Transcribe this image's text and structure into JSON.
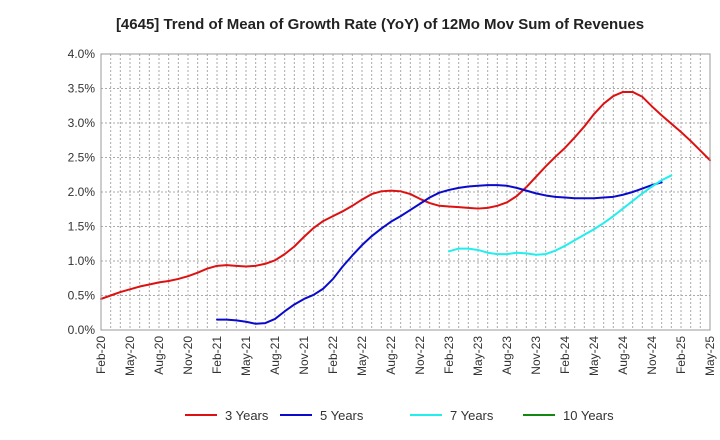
{
  "chart_data": {
    "type": "line",
    "title": "[4645]  Trend of Mean of Growth Rate (YoY) of 12Mo Mov Sum of Revenues",
    "xlabel": "",
    "ylabel": "",
    "ylim": [
      0,
      0.04
    ],
    "x_tick_labels": [
      "Feb-20",
      "May-20",
      "Aug-20",
      "Nov-20",
      "Feb-21",
      "May-21",
      "Aug-21",
      "Nov-21",
      "Feb-22",
      "May-22",
      "Aug-22",
      "Nov-22",
      "Feb-23",
      "May-23",
      "Aug-23",
      "Nov-23",
      "Feb-24",
      "May-24",
      "Aug-24",
      "Nov-24",
      "Feb-25",
      "May-25"
    ],
    "y_tick_labels": [
      "0.0%",
      "0.5%",
      "1.0%",
      "1.5%",
      "2.0%",
      "2.5%",
      "3.0%",
      "3.5%",
      "4.0%"
    ],
    "grid": true,
    "legend_position": "bottom",
    "series": [
      {
        "name": "3 Years",
        "color": "#dd1111",
        "start_month_index": 0,
        "values": [
          0.0045,
          0.005,
          0.0055,
          0.0059,
          0.0063,
          0.0066,
          0.0069,
          0.0071,
          0.0074,
          0.0078,
          0.0083,
          0.0089,
          0.0093,
          0.0094,
          0.0093,
          0.0092,
          0.0093,
          0.0096,
          0.0101,
          0.011,
          0.0121,
          0.0135,
          0.0148,
          0.0158,
          0.0165,
          0.0172,
          0.018,
          0.0189,
          0.0197,
          0.0201,
          0.0202,
          0.0201,
          0.0197,
          0.019,
          0.0184,
          0.018,
          0.0179,
          0.0178,
          0.0177,
          0.0176,
          0.0177,
          0.018,
          0.0185,
          0.0194,
          0.0207,
          0.0222,
          0.0237,
          0.0251,
          0.0264,
          0.0279,
          0.0295,
          0.0313,
          0.0328,
          0.0339,
          0.0345,
          0.0345,
          0.0338,
          0.0324,
          0.0311,
          0.0299,
          0.0287,
          0.0274,
          0.026,
          0.0246
        ]
      },
      {
        "name": "5 Years",
        "color": "#0a0acc",
        "start_month_index": 12,
        "values": [
          0.0015,
          0.0015,
          0.0014,
          0.0012,
          0.0009,
          0.001,
          0.0016,
          0.0027,
          0.0037,
          0.0045,
          0.0051,
          0.006,
          0.0074,
          0.0092,
          0.0108,
          0.0123,
          0.0136,
          0.0147,
          0.0157,
          0.0165,
          0.0174,
          0.0183,
          0.0192,
          0.0199,
          0.0203,
          0.0206,
          0.0208,
          0.0209,
          0.021,
          0.021,
          0.0209,
          0.0206,
          0.0202,
          0.0198,
          0.0195,
          0.0193,
          0.0192,
          0.0191,
          0.0191,
          0.0191,
          0.0192,
          0.0193,
          0.0196,
          0.02,
          0.0205,
          0.021,
          0.0214
        ]
      },
      {
        "name": "7 Years",
        "color": "#22eeee",
        "start_month_index": 36,
        "values": [
          0.0114,
          0.0118,
          0.0118,
          0.0116,
          0.0112,
          0.011,
          0.011,
          0.0112,
          0.0111,
          0.0109,
          0.011,
          0.0115,
          0.0122,
          0.013,
          0.0138,
          0.0146,
          0.0155,
          0.0165,
          0.0176,
          0.0187,
          0.0198,
          0.0208,
          0.0217,
          0.0224
        ]
      },
      {
        "name": "10 Years",
        "color": "#118811",
        "start_month_index": 0,
        "values": []
      }
    ]
  }
}
